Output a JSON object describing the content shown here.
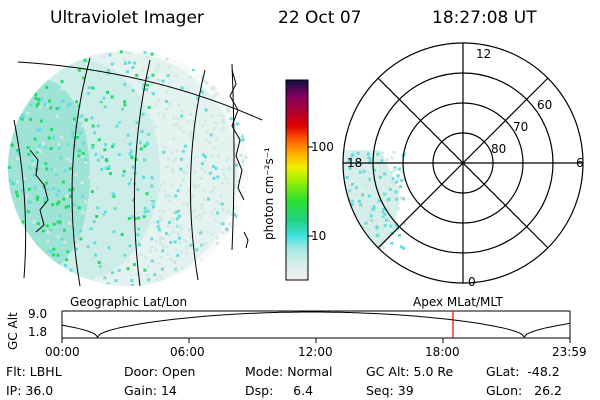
{
  "header": {
    "title": "Ultraviolet Imager",
    "date": "22 Oct 07",
    "time": "18:27:08 UT"
  },
  "colorbar": {
    "unit_label": "photon cm⁻²s⁻¹",
    "ticks": [
      "100",
      "10"
    ]
  },
  "map_panel": {
    "caption": "Geographic Lat/Lon"
  },
  "polar_panel": {
    "caption": "Apex MLat/MLT",
    "hour_labels": {
      "top": "12",
      "left": "18",
      "right": "6",
      "bottom": "0"
    },
    "lat_labels": [
      "60",
      "70",
      "80"
    ]
  },
  "orbit_plot": {
    "ylabel": "GC Alt",
    "yticks": [
      "9.0",
      "1.8"
    ],
    "xticks": [
      "00:00",
      "06:00",
      "12:00",
      "18:00",
      "23:59"
    ],
    "marker_time": "18:27",
    "marker_color": "#e00000"
  },
  "status": {
    "flt_label": "Flt:",
    "flt_value": "LBHL",
    "ip_label": "IP:",
    "ip_value": "36.0",
    "door_label": "Door:",
    "door_value": "Open",
    "gain_label": "Gain:",
    "gain_value": "14",
    "mode_label": "Mode:",
    "mode_value": "Normal",
    "dsp_label": "Dsp:",
    "dsp_value": "6.4",
    "gcalt_label": "GC Alt:",
    "gcalt_value": "5.0 Re",
    "seq_label": "Seq:",
    "seq_value": "39",
    "glat_label": "GLat:",
    "glat_value": "-48.2",
    "glon_label": "GLon:",
    "glon_value": "26.2"
  },
  "colors": {
    "aurora_green": "#22dd66",
    "aurora_cyan": "#66dddd",
    "aurora_pale": "#cfeae4",
    "orbit_marker": "#e00000"
  }
}
